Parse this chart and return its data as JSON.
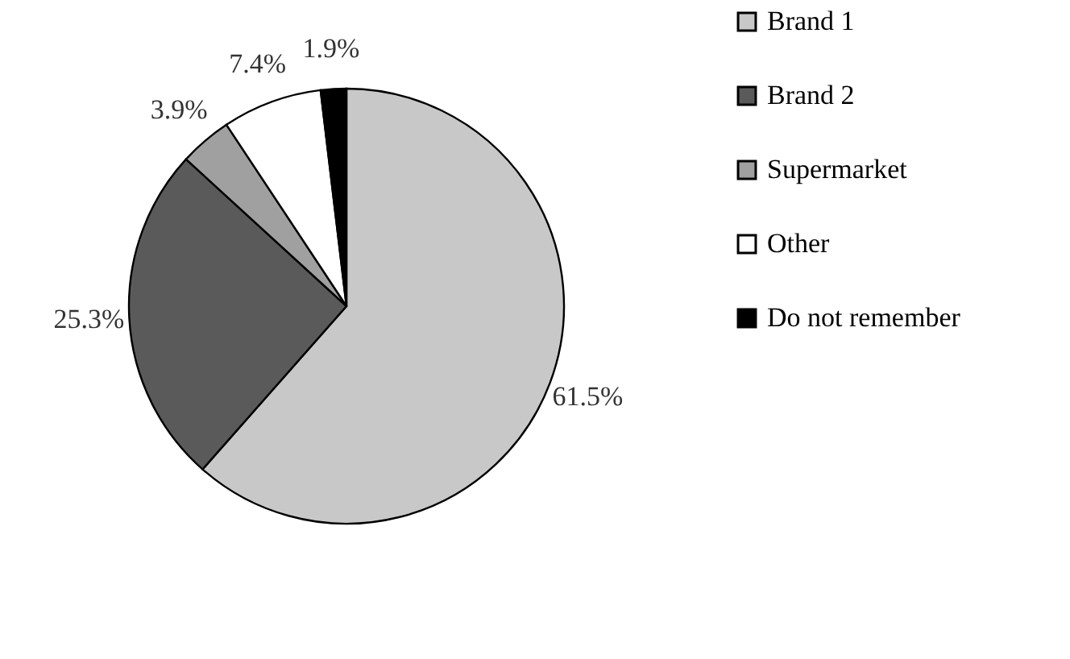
{
  "chart_data": {
    "type": "pie",
    "categories": [
      "Brand 1",
      "Brand 2",
      "Supermarket",
      "Other",
      "Do not remember"
    ],
    "values": [
      61.5,
      25.3,
      3.9,
      7.4,
      1.9
    ],
    "colors": [
      "#c8c8c8",
      "#5a5a5a",
      "#a0a0a0",
      "#ffffff",
      "#000000"
    ],
    "value_labels": [
      "61.5%",
      "25.3%",
      "3.9%",
      "7.4%",
      "1.9%"
    ],
    "legend": "right"
  }
}
